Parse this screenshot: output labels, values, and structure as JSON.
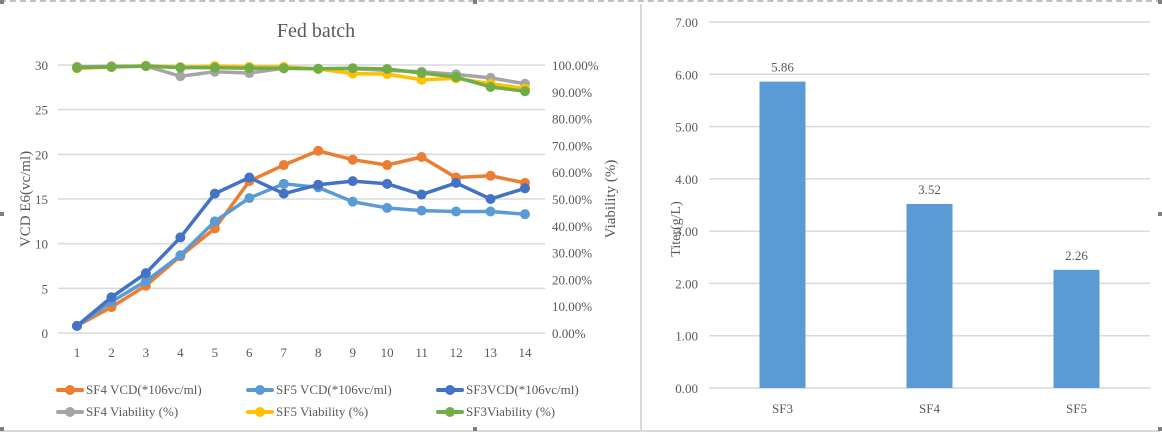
{
  "chart_data": [
    {
      "type": "line",
      "title": "Fed batch",
      "xlabel": "",
      "ylabel": "VCD E6(vc/ml)",
      "y2label": "Viability (%)",
      "x": [
        1,
        2,
        3,
        4,
        5,
        6,
        7,
        8,
        9,
        10,
        11,
        12,
        13,
        14
      ],
      "x_tick_labels": [
        "1",
        "2",
        "3",
        "4",
        "5",
        "6",
        "7",
        "8",
        "9",
        "10",
        "11",
        "12",
        "13",
        "14"
      ],
      "ylim": [
        0,
        30
      ],
      "y_ticks": [
        0,
        5,
        10,
        15,
        20,
        25,
        30
      ],
      "y_tick_labels": [
        "0",
        "5",
        "10",
        "15",
        "20",
        "25",
        "30"
      ],
      "y2lim": [
        0,
        100
      ],
      "y2_ticks": [
        0,
        10,
        20,
        30,
        40,
        50,
        60,
        70,
        80,
        90,
        100
      ],
      "y2_tick_labels": [
        "0.00%",
        "10.00%",
        "20.00%",
        "30.00%",
        "40.00%",
        "50.00%",
        "60.00%",
        "70.00%",
        "80.00%",
        "90.00%",
        "100.00%"
      ],
      "grid": true,
      "legend_position": "bottom",
      "series": [
        {
          "name": "SF4 VCD(*106vc/ml)",
          "axis": "left",
          "color": "#ED7D31",
          "values": [
            0.8,
            2.9,
            5.3,
            8.6,
            11.7,
            17.0,
            18.8,
            20.4,
            19.4,
            18.8,
            19.7,
            17.4,
            17.6,
            16.8
          ]
        },
        {
          "name": "SF5 VCD(*106vc/ml)",
          "axis": "left",
          "color": "#5B9BD5",
          "values": [
            0.8,
            3.5,
            5.8,
            8.7,
            12.5,
            15.1,
            16.7,
            16.3,
            14.7,
            14.0,
            13.7,
            13.6,
            13.6,
            13.3
          ]
        },
        {
          "name": "SF3VCD(*106vc/ml)",
          "axis": "left",
          "color": "#4472C4",
          "values": [
            0.8,
            4.0,
            6.7,
            10.7,
            15.6,
            17.4,
            15.6,
            16.6,
            17.0,
            16.7,
            15.5,
            16.8,
            15.0,
            16.2
          ]
        },
        {
          "name": "SF4 Viability (%)",
          "axis": "right",
          "color": "#A5A5A5",
          "values": [
            99.3,
            99.5,
            99.6,
            95.8,
            97.5,
            97.0,
            98.8,
            98.6,
            98.6,
            98.0,
            97.5,
            96.5,
            95.2,
            93.0
          ]
        },
        {
          "name": "SF5 Viability (%)",
          "axis": "right",
          "color": "#FFC000",
          "values": [
            98.8,
            99.2,
            99.7,
            99.2,
            99.6,
            99.3,
            99.3,
            98.5,
            96.8,
            96.6,
            94.5,
            95.0,
            93.0,
            91.2
          ]
        },
        {
          "name": "SF3Viability (%)",
          "axis": "right",
          "color": "#70AD47",
          "values": [
            99.0,
            99.3,
            99.6,
            99.0,
            99.0,
            98.8,
            98.8,
            98.6,
            98.8,
            98.5,
            97.0,
            95.5,
            91.8,
            90.2
          ]
        }
      ]
    },
    {
      "type": "bar",
      "title": "",
      "xlabel": "",
      "ylabel": "Titer(g/L)",
      "categories": [
        "SF3",
        "SF4",
        "SF5"
      ],
      "values": [
        5.86,
        3.52,
        2.26
      ],
      "data_labels": [
        "5.86",
        "3.52",
        "2.26"
      ],
      "ylim": [
        0,
        7
      ],
      "y_ticks": [
        0,
        1,
        2,
        3,
        4,
        5,
        6,
        7
      ],
      "y_tick_labels": [
        "0.00",
        "1.00",
        "2.00",
        "3.00",
        "4.00",
        "5.00",
        "6.00",
        "7.00"
      ],
      "grid": true,
      "bar_color": "#5B9BD5"
    }
  ]
}
